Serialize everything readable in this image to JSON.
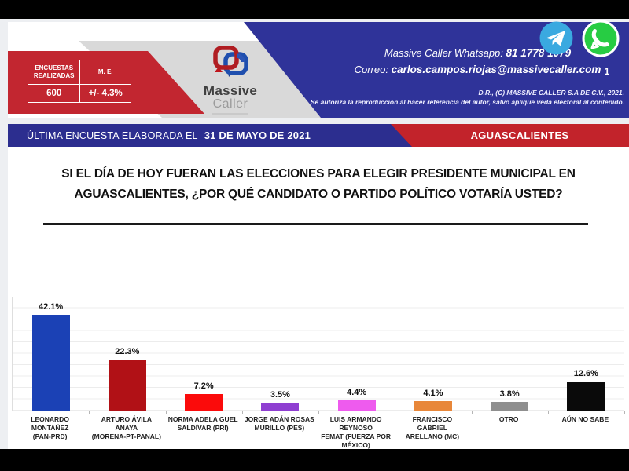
{
  "header": {
    "stats": {
      "col1_header": "ENCUESTAS REALIZADAS",
      "col2_header": "M. E.",
      "col1_value": "600",
      "col2_value": "+/- 4.3%"
    },
    "logo": {
      "name": "Massive",
      "subname": "Caller"
    },
    "contact": {
      "whatsapp_label": "Massive Caller Whatsapp:",
      "whatsapp_number": "81 1778 1079",
      "correo_label": "Correo:",
      "correo_value": "carlos.campos.riojas@massivecaller.com"
    },
    "badge_count": "1",
    "copyright_line1": "D.R., (C) MASSIVE CALLER S.A DE C.V., 2021.",
    "copyright_line2": "Se autoriza la reproducción al hacer referencia del autor, salvo aplique veda electoral al contenido."
  },
  "banner": {
    "left_label": "ÚLTIMA ENCUESTA ELABORADA EL",
    "left_date": "31 DE MAYO DE 2021",
    "right_label": "AGUASCALIENTES"
  },
  "question": {
    "line1": "SI EL DÍA DE HOY FUERAN LAS ELECCIONES PARA ELEGIR PRESIDENTE MUNICIPAL EN",
    "line2": "AGUASCALIENTES, ¿POR QUÉ CANDIDATO O PARTIDO POLÍTICO VOTARÍA USTED?"
  },
  "colors": {
    "ribbon_red": "#c22630",
    "header_blue": "#2f3399",
    "banner_blue": "#2c2e8f",
    "banner_red": "#c2232b",
    "telegram_blue": "#3aa9e0",
    "whatsapp_green": "#27cc43"
  },
  "chart_data": {
    "type": "bar",
    "title": "SI EL DÍA DE HOY FUERAN LAS ELECCIONES PARA ELEGIR PRESIDENTE MUNICIPAL EN AGUASCALIENTES, ¿POR QUÉ CANDIDATO O PARTIDO POLÍTICO VOTARÍA USTED?",
    "categories": [
      "LEONARDO MONTAÑEZ (PAN-PRD)",
      "ARTURO ÁVILA ANAYA (MORENA-PT-PANAL)",
      "NORMA ADELA GUEL SALDÍVAR (PRI)",
      "JORGE ADÁN ROSAS MURILLO (PES)",
      "LUIS ARMANDO REYNOSO FEMAT (FUERZA POR MÉXICO)",
      "FRANCISCO GABRIEL ARELLANO (MC)",
      "OTRO",
      "AÚN NO SABE"
    ],
    "category_lines": [
      [
        "LEONARDO MONTAÑEZ",
        "(PAN-PRD)"
      ],
      [
        "ARTURO ÁVILA ANAYA",
        "(MORENA-PT-PANAL)"
      ],
      [
        "NORMA ADELA GUEL",
        "SALDÍVAR (PRI)"
      ],
      [
        "JORGE ADÁN ROSAS",
        "MURILLO (PES)"
      ],
      [
        "LUIS ARMANDO REYNOSO",
        "FEMAT (FUERZA POR",
        "MÉXICO)"
      ],
      [
        "FRANCISCO GABRIEL",
        "ARELLANO (MC)"
      ],
      [
        "OTRO"
      ],
      [
        "AÚN NO SABE"
      ]
    ],
    "values": [
      42.1,
      22.3,
      7.2,
      3.5,
      4.4,
      4.1,
      3.8,
      12.6
    ],
    "labels": [
      "42.1%",
      "22.3%",
      "7.2%",
      "3.5%",
      "4.4%",
      "4.1%",
      "3.8%",
      "12.6%"
    ],
    "colors": [
      "#1b41b5",
      "#b11116",
      "#fb0b0b",
      "#8f3fd1",
      "#ee5bee",
      "#e8873a",
      "#8f8f8f",
      "#0a0a0a"
    ],
    "xlabel": "",
    "ylabel": "",
    "ylim": [
      0,
      50
    ],
    "grid": true,
    "legend": false
  }
}
